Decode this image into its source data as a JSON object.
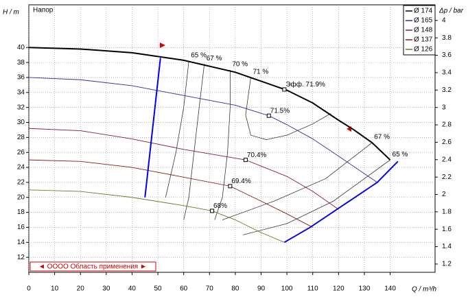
{
  "chart_data": {
    "type": "line",
    "title": "Напор",
    "y_label": "H / m",
    "y2_label": "Δp / bar",
    "x_label": "Q / m³/h",
    "xlim": [
      0,
      157.4
    ],
    "ylim": [
      10,
      45.7
    ],
    "y2lim": [
      1.105,
      4.18
    ],
    "xticks": [
      0,
      10,
      20,
      30,
      40,
      50,
      60,
      70,
      80,
      90,
      100,
      110,
      120,
      130,
      140
    ],
    "yticks": [
      12,
      14,
      16,
      18,
      20,
      22,
      24,
      26,
      28,
      30,
      32,
      34,
      36,
      38,
      40
    ],
    "y2ticks": [
      1.2,
      1.4,
      1.6,
      1.8,
      2,
      2.2,
      2.4,
      2.6,
      2.8,
      3,
      3.2,
      3.4,
      3.6,
      3.8,
      4
    ],
    "grid": true,
    "legend": "top-right",
    "series": [
      {
        "name": "Ø 174",
        "color": "#000000",
        "x": [
          0,
          20,
          40,
          60,
          80,
          100,
          110,
          120,
          126,
          133,
          140
        ],
        "values": [
          40,
          39.8,
          39.3,
          38.3,
          36.7,
          34.3,
          32.6,
          30.3,
          29,
          27.3,
          25
        ]
      },
      {
        "name": "Ø 165",
        "color": "#2e2e9a",
        "x": [
          0,
          20,
          40,
          60,
          80,
          93,
          100,
          110,
          120,
          135
        ],
        "values": [
          36,
          35.7,
          34.9,
          33.6,
          32.3,
          30.9,
          29.7,
          27.8,
          25.5,
          22
        ]
      },
      {
        "name": "Ø 148",
        "color": "#8b1a3a",
        "x": [
          0,
          20,
          40,
          60,
          84,
          100,
          110,
          120
        ],
        "values": [
          29.2,
          28.9,
          27.8,
          26.4,
          25,
          22.8,
          20.8,
          18.4
        ]
      },
      {
        "name": "Ø 137",
        "color": "#8b1a1a",
        "x": [
          0,
          20,
          40,
          60,
          78,
          90,
          100,
          110
        ],
        "values": [
          25,
          24.8,
          24,
          22.7,
          21.5,
          19.5,
          17.8,
          16
        ]
      },
      {
        "name": "Ø 126",
        "color": "#6b7a1e",
        "x": [
          0,
          20,
          40,
          60,
          71,
          80,
          90,
          99
        ],
        "values": [
          21,
          20.8,
          20,
          18.9,
          18.2,
          17,
          15.3,
          14
        ]
      }
    ],
    "markers": [
      {
        "label": "Эфф.  71.9%",
        "x": 99,
        "y": 34.4
      },
      {
        "label": "71.5%",
        "x": 93,
        "y": 30.9
      },
      {
        "label": "70.4%",
        "x": 84,
        "y": 25
      },
      {
        "label": "69.4%",
        "x": 78,
        "y": 21.5
      },
      {
        "label": "68%",
        "x": 71,
        "y": 18.2
      }
    ],
    "efficiency_lines": [
      {
        "label": "65 %",
        "x": [
          62,
          60,
          57,
          53
        ],
        "values": [
          38.2,
          32,
          26,
          20
        ]
      },
      {
        "label": "67 %",
        "x": [
          68,
          66,
          64,
          62,
          60
        ],
        "values": [
          37.8,
          32,
          26,
          20,
          17
        ]
      },
      {
        "label": "70 %",
        "x": [
          78,
          78,
          77,
          75,
          72
        ],
        "values": [
          37,
          32,
          26,
          20,
          17
        ]
      },
      {
        "label": "71 %",
        "x": [
          86,
          84,
          86,
          92,
          100,
          110,
          117
        ],
        "values": [
          36,
          31,
          28.3,
          27.7,
          28.3,
          29.8,
          31.2
        ]
      },
      {
        "label": "67 %",
        "x": [
          133,
          115,
          95,
          75
        ],
        "values": [
          27.3,
          22.5,
          19.5,
          17
        ]
      },
      {
        "label": "65 %",
        "x": [
          140,
          118,
          100,
          83
        ],
        "values": [
          25,
          19.5,
          16.5,
          15
        ]
      }
    ],
    "boundary_lines": [
      {
        "x": [
          45,
          51
        ],
        "values": [
          20,
          38.6
        ]
      },
      {
        "x": [
          99,
          109,
          135,
          143
        ],
        "values": [
          14,
          16,
          22,
          24.8
        ]
      }
    ],
    "range_label": "◄ OOOO Область применения ►"
  }
}
